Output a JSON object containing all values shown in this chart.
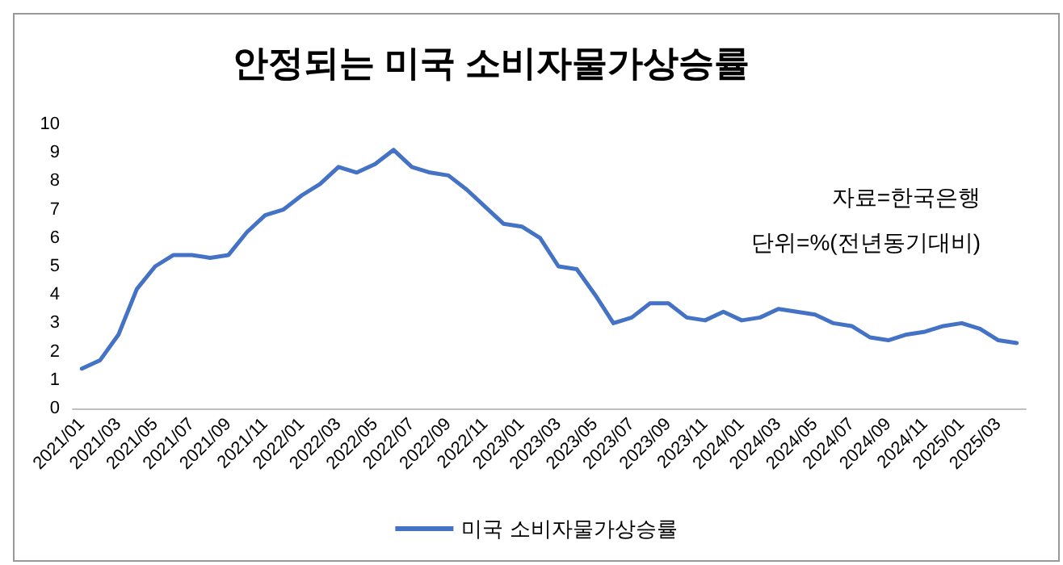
{
  "chart_data": {
    "type": "line",
    "title": "안정되는 미국 소비자물가상승률",
    "categories": [
      "2021/01",
      null,
      "2021/03",
      null,
      "2021/05",
      null,
      "2021/07",
      null,
      "2021/09",
      null,
      "2021/11",
      null,
      "2022/01",
      null,
      "2022/03",
      null,
      "2022/05",
      null,
      "2022/07",
      null,
      "2022/09",
      null,
      "2022/11",
      null,
      "2023/01",
      null,
      "2023/03",
      null,
      "2023/05",
      null,
      "2023/07",
      null,
      "2023/09",
      null,
      "2023/11",
      null,
      "2024/01",
      null,
      "2024/03",
      null,
      "2024/05",
      null,
      "2024/07",
      null,
      "2024/09",
      null,
      "2024/11",
      null,
      "2025/01",
      null,
      "2025/03",
      null
    ],
    "series": [
      {
        "name": "미국 소비자물가상승률",
        "color": "#4472c4",
        "values": [
          1.4,
          1.7,
          2.6,
          4.2,
          5.0,
          5.4,
          5.4,
          5.3,
          5.4,
          6.2,
          6.8,
          7.0,
          7.5,
          7.9,
          8.5,
          8.3,
          8.6,
          9.1,
          8.5,
          8.3,
          8.2,
          7.7,
          7.1,
          6.5,
          6.4,
          6.0,
          5.0,
          4.9,
          4.0,
          3.0,
          3.2,
          3.7,
          3.7,
          3.2,
          3.1,
          3.4,
          3.1,
          3.2,
          3.5,
          3.4,
          3.3,
          3.0,
          2.9,
          2.5,
          2.4,
          2.6,
          2.7,
          2.9,
          3.0,
          2.8,
          2.4,
          2.3
        ]
      }
    ],
    "ylim": [
      0,
      10
    ],
    "yticks": [
      0,
      1,
      2,
      3,
      4,
      5,
      6,
      7,
      8,
      9,
      10
    ],
    "grid": false,
    "legend": "bottom",
    "marker": "none",
    "line_style": "solid",
    "annotations": [
      "자료=한국은행",
      "단위=%(전년동기대비)"
    ]
  }
}
